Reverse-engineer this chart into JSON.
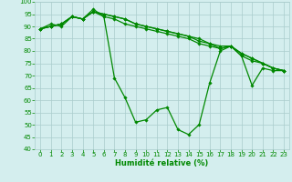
{
  "background_color": "#d4eeee",
  "grid_color": "#aacccc",
  "line_color": "#008800",
  "xlabel": "Humidité relative (%)",
  "xlabel_color": "#008800",
  "ylim": [
    40,
    100
  ],
  "xlim": [
    -0.5,
    23.5
  ],
  "yticks": [
    40,
    45,
    50,
    55,
    60,
    65,
    70,
    75,
    80,
    85,
    90,
    95,
    100
  ],
  "xticks": [
    0,
    1,
    2,
    3,
    4,
    5,
    6,
    7,
    8,
    9,
    10,
    11,
    12,
    13,
    14,
    15,
    16,
    17,
    18,
    19,
    20,
    21,
    22,
    23
  ],
  "lines": [
    [
      89,
      91,
      90,
      94,
      93,
      97,
      94,
      69,
      61,
      51,
      52,
      56,
      57,
      48,
      46,
      50,
      67,
      80,
      82,
      78,
      66,
      73,
      72,
      72
    ],
    [
      89,
      90,
      91,
      94,
      93,
      96,
      94,
      93,
      91,
      90,
      89,
      88,
      87,
      86,
      85,
      83,
      82,
      81,
      82,
      78,
      76,
      75,
      73,
      72
    ],
    [
      89,
      90,
      91,
      94,
      93,
      96,
      95,
      94,
      93,
      91,
      90,
      89,
      88,
      87,
      86,
      84,
      83,
      82,
      82,
      79,
      77,
      75,
      73,
      72
    ],
    [
      89,
      90,
      91,
      94,
      93,
      96,
      95,
      94,
      93,
      91,
      90,
      89,
      88,
      87,
      86,
      85,
      83,
      81,
      82,
      79,
      77,
      75,
      73,
      72
    ]
  ],
  "tick_fontsize": 5,
  "xlabel_fontsize": 6,
  "marker_size": 1.8,
  "line_width": 0.9
}
